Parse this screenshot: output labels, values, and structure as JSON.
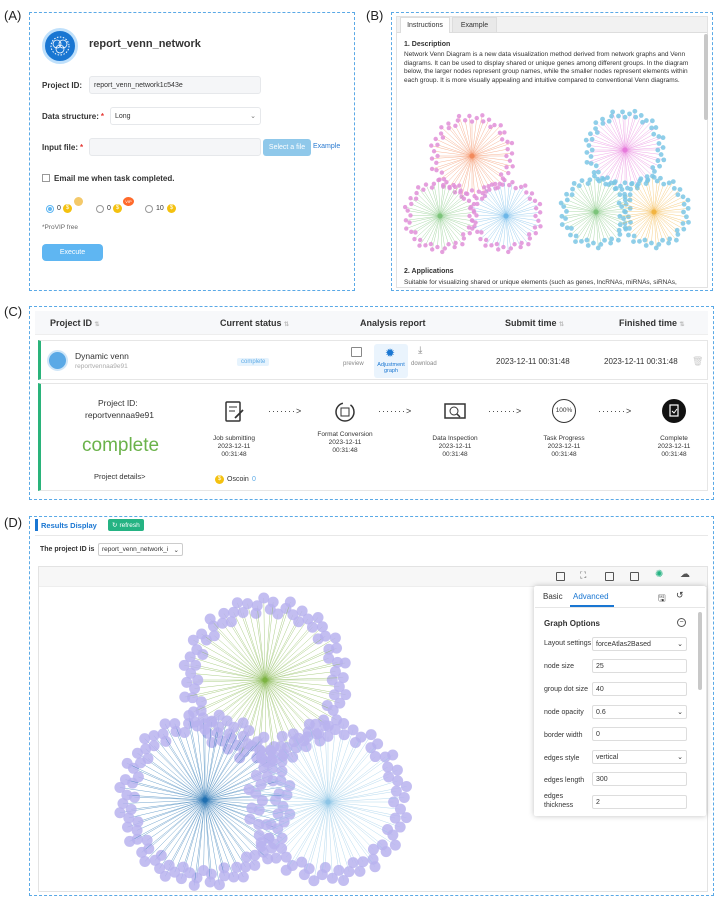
{
  "panels": {
    "a": "(A)",
    "b": "(B)",
    "c": "(C)",
    "d": "(D)"
  },
  "form": {
    "title": "report_venn_network",
    "project_id_label": "Project ID:",
    "project_id_value": "report_venn_network1c543e",
    "data_structure_label": "Data structure:",
    "data_structure_value": "Long",
    "input_file_label": "Input file:",
    "select_file_label": "Select a file",
    "example_link": "Example",
    "email_label": "Email me when task completed.",
    "price_options": [
      {
        "label": "0",
        "badge": ""
      },
      {
        "label": "0",
        "badge": "VIP"
      },
      {
        "label": "10",
        "badge": ""
      }
    ],
    "provip_note": "*ProVIP free",
    "execute_label": "Execute"
  },
  "docs": {
    "tabs": [
      "Instructions",
      "Example"
    ],
    "heading1": "1. Description",
    "para1": "Network Venn Diagram is a new data visualization method derived from network graphs and Venn diagrams. It can be used to display shared or unique genes among different groups. In the diagram below, the larger nodes represent group names, while the smaller nodes represent elements within each group. It is more visually appealing and intuitive compared to conventional Venn diagrams.",
    "heading2": "2. Applications",
    "para2": "Suitable for visualizing shared or unique elements (such as genes, lncRNAs, miRNAs, siRNAs,"
  },
  "table": {
    "headers": [
      "Project ID",
      "Current status",
      "Analysis report",
      "Submit time",
      "Finished time"
    ],
    "row": {
      "name": "Dynamic venn",
      "id": "reportvennaa9e91",
      "status": "complete",
      "actions": [
        "preview",
        "Adjustment graph",
        "download"
      ],
      "submit_time": "2023-12-11 00:31:48",
      "finished_time": "2023-12-11 00:31:48"
    },
    "detail": {
      "project_id_label": "Project ID:",
      "project_id_value": "reportvennaa9e91",
      "status_big": "complete",
      "details_link": "Project details>",
      "coin_label": "Oscoin",
      "coin_value": "0",
      "steps": [
        {
          "label": "Job submitting",
          "date": "2023-12-11",
          "time": "00:31:48"
        },
        {
          "label": "Format Conversion",
          "date": "2023-12-11",
          "time": "00:31:48"
        },
        {
          "label": "Data Inspection",
          "date": "2023-12-11",
          "time": "00:31:48"
        },
        {
          "label": "Task Progress",
          "date": "2023-12-11",
          "time": "00:31:48"
        },
        {
          "label": "Complete",
          "date": "2023-12-11",
          "time": "00:31:48"
        }
      ],
      "progress_text": "100%",
      "arrow_text": "·······>"
    }
  },
  "results": {
    "title": "Results Display",
    "refresh_label": "refresh",
    "project_select_label": "The project ID is",
    "project_select_value": "report_venn_network_i",
    "options": {
      "tabs": [
        "Basic",
        "Advanced"
      ],
      "title": "Graph Options",
      "rows": [
        {
          "label": "Layout settings",
          "value": "forceAtlas2Based",
          "type": "select"
        },
        {
          "label": "node size",
          "value": "25",
          "type": "input"
        },
        {
          "label": "group dot size",
          "value": "40",
          "type": "input"
        },
        {
          "label": "node opacity",
          "value": "0.6",
          "type": "select"
        },
        {
          "label": "border width",
          "value": "0",
          "type": "input"
        },
        {
          "label": "edges style",
          "value": "vertical",
          "type": "select"
        },
        {
          "label": "edges length",
          "value": "300",
          "type": "input"
        },
        {
          "label": "edges thickness",
          "value": "2",
          "type": "input"
        }
      ]
    }
  },
  "colors": {
    "accent": "#5fb6f2",
    "dash": "#5aa9e6",
    "complete_green": "#6ab24a",
    "node": "#b8b3ee",
    "green_edge": "#7cb342",
    "blue_edge": "#1f6fb0",
    "lightblue_edge": "#8ec5e6"
  }
}
